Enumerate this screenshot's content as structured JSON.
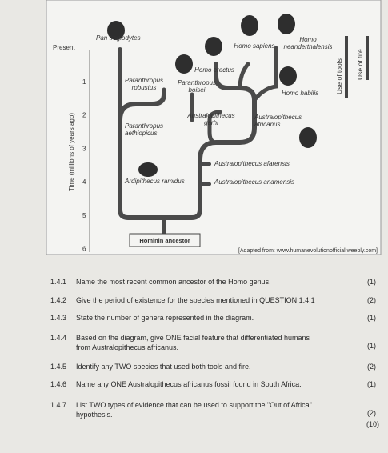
{
  "diagram": {
    "present": "Present",
    "axis_label": "Time (millions of years ago)",
    "ticks": [
      "1",
      "2",
      "3",
      "4",
      "5",
      "6"
    ],
    "labels": {
      "pan": "Pan troglodytes",
      "sapiens": "Homo sapiens",
      "neander": [
        "Homo",
        "neanderthalensis"
      ],
      "erectus": "Homo erectus",
      "robustus": [
        "Paranthropus",
        "robustus"
      ],
      "boisei": [
        "Paranthropus",
        "boisei"
      ],
      "habilis": "Homo habilis",
      "garhi": [
        "Australopithecus",
        "garhi"
      ],
      "africanus": [
        "Australopithecus",
        "africanus"
      ],
      "aethiopicus": [
        "Paranthropus",
        "aethiopicus"
      ],
      "afarensis": "Australopithecus afarensis",
      "ramidus": "Ardipithecus ramidus",
      "anamensis": "Australopithecus anamensis",
      "ancestor": "Hominin ancestor"
    },
    "tools": "Use of tools",
    "fire": "Use of fire",
    "source": "[Adapted from: www.humanevolutionofficial.weebly.com]"
  },
  "questions": [
    {
      "number": "1.4.1",
      "text": [
        "Name the most recent common ancestor of the Homo genus."
      ],
      "marks": "(1)"
    },
    {
      "number": "1.4.2",
      "text": [
        "Give the period of existence for the species mentioned in QUESTION 1.4.1"
      ],
      "marks": "(2)"
    },
    {
      "number": "1.4.3",
      "text": [
        "State the number of genera represented in the diagram."
      ],
      "marks": "(1)"
    },
    {
      "number": "1.4.4",
      "text": [
        "Based on the diagram, give ONE facial feature that differentiated humans",
        "from Australopithecus africanus."
      ],
      "marks": "(1)"
    },
    {
      "number": "1.4.5",
      "text": [
        "Identify any TWO species that used both tools and fire."
      ],
      "marks": "(2)"
    },
    {
      "number": "1.4.6",
      "text": [
        "Name any ONE Australopithecus africanus fossil found in South Africa."
      ],
      "marks": "(1)"
    },
    {
      "number": "1.4.7",
      "text": [
        "List TWO types of evidence that can be used to support the \"Out of Africa\"",
        "hypothesis."
      ],
      "marks": "(2)"
    }
  ],
  "total": "(10)"
}
